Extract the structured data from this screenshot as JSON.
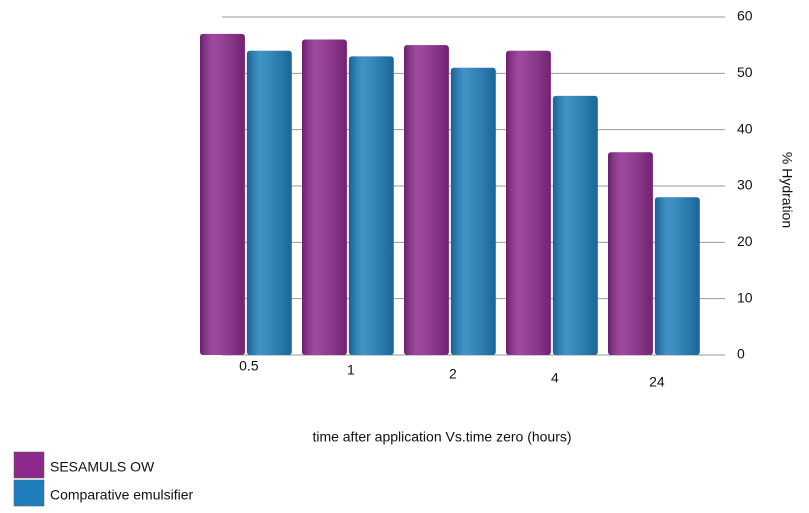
{
  "chart_data": {
    "type": "bar",
    "x_label": "time after application Vs.time zero (hours)",
    "y_label": "% Hydration",
    "categories": [
      "0.5",
      "1",
      "2",
      "4",
      "24"
    ],
    "series": [
      {
        "name": "SESAMULS OW",
        "color": "#8e2a8e",
        "values": [
          57,
          56,
          55,
          54,
          36
        ]
      },
      {
        "name": "Comparative emulsifier",
        "color": "#1f7fbd",
        "values": [
          54,
          53,
          51,
          46,
          28
        ]
      }
    ],
    "ylim": [
      0,
      60
    ],
    "yticks": [
      0,
      10,
      20,
      30,
      40,
      50,
      60
    ],
    "grid": true
  }
}
